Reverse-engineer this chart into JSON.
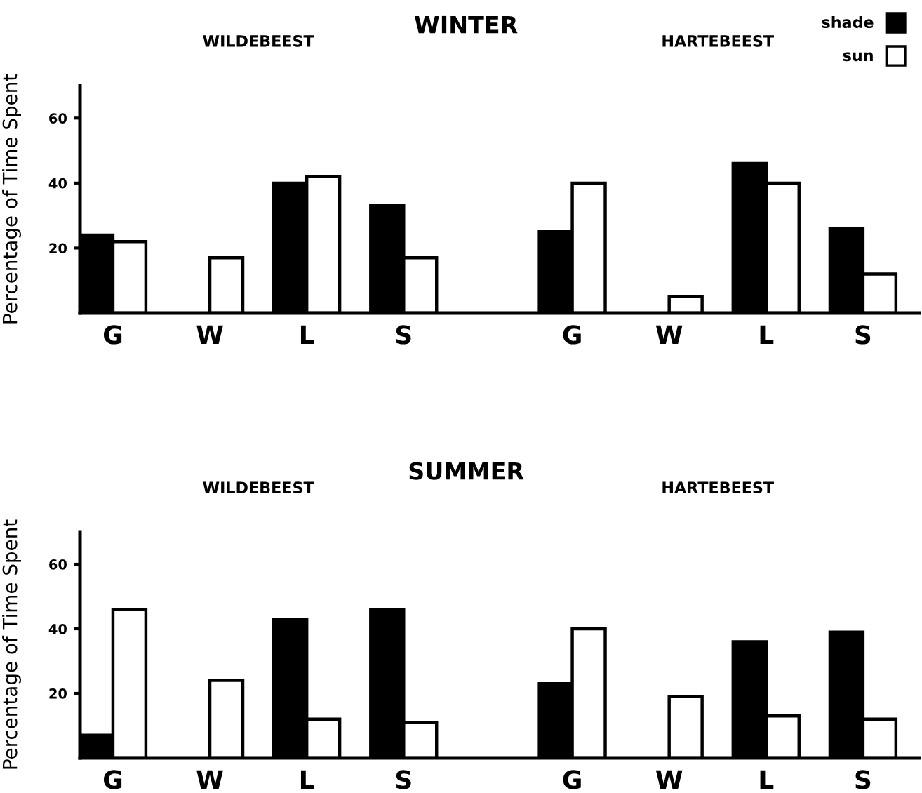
{
  "chart_data": [
    {
      "type": "bar",
      "title": "WINTER",
      "ylabel": "Percentage of Time Spent",
      "annotations": [
        "WILDEBEEST",
        "HARTEBEEST"
      ],
      "categories": [
        "G",
        "W",
        "L",
        "S",
        "G",
        "W",
        "L",
        "S"
      ],
      "series": [
        {
          "name": "shade",
          "color": "#000000",
          "values": [
            24,
            0,
            40,
            33,
            25,
            0,
            46,
            26
          ]
        },
        {
          "name": "sun",
          "color": "#ffffff",
          "values": [
            22,
            17,
            42,
            17,
            40,
            5,
            40,
            12
          ]
        }
      ],
      "ylim": [
        0,
        70
      ],
      "yticks": [
        20,
        40,
        60
      ],
      "legend": "top right"
    },
    {
      "type": "bar",
      "title": "SUMMER",
      "ylabel": "Percentage of Time Spent",
      "annotations": [
        "WILDEBEEST",
        "HARTEBEEST"
      ],
      "categories": [
        "G",
        "W",
        "L",
        "S",
        "G",
        "W",
        "L",
        "S"
      ],
      "series": [
        {
          "color": "#000000",
          "values": [
            7,
            0,
            43,
            46,
            23,
            0,
            36,
            39
          ]
        },
        {
          "color": "#ffffff",
          "values": [
            46,
            24,
            12,
            11,
            40,
            19,
            13,
            12
          ]
        }
      ],
      "ylim": [
        0,
        70
      ],
      "yticks": [
        20,
        40,
        60
      ]
    }
  ]
}
